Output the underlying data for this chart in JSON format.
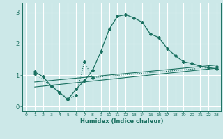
{
  "title": "",
  "xlabel": "Humidex (Indice chaleur)",
  "bg_color": "#cce8e8",
  "grid_color": "#ffffff",
  "line_color": "#1a7060",
  "xlim": [
    -0.5,
    23.5
  ],
  "ylim": [
    -0.15,
    3.3
  ],
  "yticks": [
    0,
    1,
    2,
    3
  ],
  "xticks": [
    0,
    1,
    2,
    3,
    4,
    5,
    6,
    7,
    8,
    9,
    10,
    11,
    12,
    13,
    14,
    15,
    16,
    17,
    18,
    19,
    20,
    21,
    22,
    23
  ],
  "line1_x": [
    1,
    2,
    3,
    4,
    5,
    6,
    7,
    8,
    9,
    10,
    11,
    12,
    13,
    14,
    15,
    16,
    17,
    18,
    19,
    20,
    21,
    22,
    23
  ],
  "line1_y": [
    1.1,
    0.95,
    0.65,
    0.45,
    0.22,
    0.55,
    0.82,
    1.15,
    1.75,
    2.45,
    2.87,
    2.92,
    2.82,
    2.68,
    2.3,
    2.2,
    1.85,
    1.62,
    1.42,
    1.37,
    1.28,
    1.24,
    1.2
  ],
  "line2_x": [
    1,
    3,
    4,
    5,
    6,
    7,
    8,
    23
  ],
  "line2_y": [
    1.05,
    0.65,
    0.45,
    0.25,
    0.35,
    1.42,
    0.92,
    1.26
  ],
  "line3_x": [
    1,
    23
  ],
  "line3_y": [
    0.78,
    1.32
  ],
  "line4_x": [
    1,
    23
  ],
  "line4_y": [
    0.62,
    1.22
  ]
}
